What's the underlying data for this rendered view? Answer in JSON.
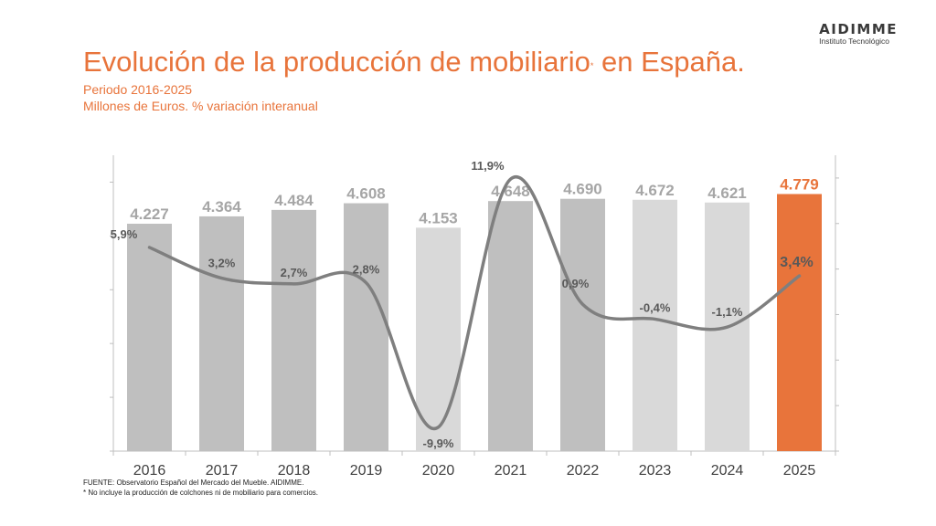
{
  "header": {
    "title_main": "Evolución de la producción de mobiliario",
    "title_mark": "*",
    "title_end": " en España.",
    "subtitle_period": "Periodo 2016-2025",
    "subtitle_units": "Millones de Euros. % variación interanual"
  },
  "logo": {
    "name": "AIDIMME",
    "tagline": "Instituto Tecnológico"
  },
  "footer": {
    "source": "FUENTE: Observatorio Español del Mercado del Mueble. AIDIMME.",
    "note": "* No incluye la producción de colchones ni de mobiliario para comercios."
  },
  "colors": {
    "accent": "#e8743b",
    "bar_dark": "#bfbfbf",
    "bar_light": "#d9d9d9",
    "line": "#7f7f7f",
    "label_gray": "#a6a6a6"
  },
  "chart_data": {
    "type": "bar",
    "categories": [
      "2016",
      "2017",
      "2018",
      "2019",
      "2020",
      "2021",
      "2022",
      "2023",
      "2024",
      "2025"
    ],
    "series": [
      {
        "values": [
          4227,
          4364,
          4484,
          4608,
          4153,
          4648,
          4690,
          4672,
          4621,
          4779
        ],
        "value_labels": [
          "4.227",
          "4.364",
          "4.484",
          "4.608",
          "4.153",
          "4.648",
          "4.690",
          "4.672",
          "4.621",
          "4.779"
        ],
        "bar_colors": [
          "#bfbfbf",
          "#bfbfbf",
          "#bfbfbf",
          "#bfbfbf",
          "#d9d9d9",
          "#bfbfbf",
          "#bfbfbf",
          "#d9d9d9",
          "#d9d9d9",
          "#e8743b"
        ],
        "axis": "left"
      },
      {
        "type": "line",
        "values": [
          5.9,
          3.2,
          2.7,
          2.8,
          -9.9,
          11.9,
          0.9,
          -0.4,
          -1.1,
          3.4
        ],
        "value_labels": [
          "5,9%",
          "3,2%",
          "2,7%",
          "2,8%",
          "-9,9%",
          "11,9%",
          "0,9%",
          "-0,4%",
          "-1,1%",
          "3,4%"
        ],
        "axis": "right",
        "smooth": true
      }
    ],
    "left_ylim": [
      0,
      5500
    ],
    "right_ylim": [
      -12,
      14
    ],
    "grid": false,
    "legend": "none"
  }
}
